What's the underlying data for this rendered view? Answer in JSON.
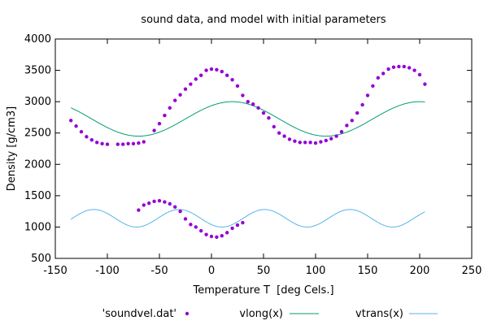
{
  "chart_data": {
    "type": "scatter",
    "title": "sound data, and model with initial parameters",
    "xlabel": "Temperature T  [deg Cels.]",
    "ylabel": "Density [g/cm3]",
    "xlim": [
      -150,
      250
    ],
    "ylim": [
      500,
      4000
    ],
    "x_ticks": [
      -150,
      -100,
      -50,
      0,
      50,
      100,
      150,
      200,
      250
    ],
    "y_ticks": [
      500,
      1000,
      1500,
      2000,
      2500,
      3000,
      3500,
      4000
    ],
    "grid": false,
    "legend_position": "bottom",
    "series": [
      {
        "name": "'soundvel.dat'",
        "kind": "points",
        "color": "#9400d3",
        "points": [
          [
            -135,
            2700
          ],
          [
            -130,
            2610
          ],
          [
            -125,
            2520
          ],
          [
            -120,
            2440
          ],
          [
            -115,
            2390
          ],
          [
            -110,
            2350
          ],
          [
            -105,
            2330
          ],
          [
            -100,
            2320
          ],
          [
            -90,
            2320
          ],
          [
            -85,
            2320
          ],
          [
            -80,
            2330
          ],
          [
            -75,
            2330
          ],
          [
            -70,
            2340
          ],
          [
            -65,
            2360
          ],
          [
            -55,
            2540
          ],
          [
            -50,
            2650
          ],
          [
            -45,
            2780
          ],
          [
            -40,
            2900
          ],
          [
            -35,
            3020
          ],
          [
            -30,
            3110
          ],
          [
            -25,
            3200
          ],
          [
            -20,
            3280
          ],
          [
            -15,
            3360
          ],
          [
            -10,
            3420
          ],
          [
            -5,
            3500
          ],
          [
            0,
            3520
          ],
          [
            5,
            3510
          ],
          [
            10,
            3480
          ],
          [
            15,
            3420
          ],
          [
            20,
            3350
          ],
          [
            25,
            3250
          ],
          [
            30,
            3100
          ],
          [
            35,
            3000
          ],
          [
            40,
            2960
          ],
          [
            45,
            2900
          ],
          [
            50,
            2820
          ],
          [
            55,
            2740
          ],
          [
            60,
            2600
          ],
          [
            65,
            2500
          ],
          [
            70,
            2450
          ],
          [
            75,
            2400
          ],
          [
            80,
            2370
          ],
          [
            85,
            2350
          ],
          [
            90,
            2350
          ],
          [
            95,
            2350
          ],
          [
            100,
            2340
          ],
          [
            105,
            2360
          ],
          [
            110,
            2380
          ],
          [
            115,
            2410
          ],
          [
            120,
            2450
          ],
          [
            125,
            2520
          ],
          [
            130,
            2620
          ],
          [
            135,
            2700
          ],
          [
            140,
            2820
          ],
          [
            145,
            2950
          ],
          [
            150,
            3100
          ],
          [
            155,
            3250
          ],
          [
            160,
            3380
          ],
          [
            165,
            3450
          ],
          [
            170,
            3520
          ],
          [
            175,
            3550
          ],
          [
            180,
            3560
          ],
          [
            185,
            3560
          ],
          [
            190,
            3540
          ],
          [
            195,
            3500
          ],
          [
            200,
            3430
          ],
          [
            205,
            3280
          ],
          [
            -70,
            1270
          ],
          [
            -65,
            1350
          ],
          [
            -60,
            1380
          ],
          [
            -55,
            1410
          ],
          [
            -50,
            1420
          ],
          [
            -45,
            1400
          ],
          [
            -40,
            1370
          ],
          [
            -35,
            1320
          ],
          [
            -30,
            1250
          ],
          [
            -25,
            1130
          ],
          [
            -20,
            1040
          ],
          [
            -15,
            1000
          ],
          [
            -10,
            940
          ],
          [
            -5,
            880
          ],
          [
            0,
            850
          ],
          [
            5,
            840
          ],
          [
            10,
            860
          ],
          [
            15,
            910
          ],
          [
            20,
            980
          ],
          [
            25,
            1030
          ],
          [
            30,
            1070
          ]
        ]
      },
      {
        "name": "vlong(x)",
        "kind": "line",
        "color": "#009e73",
        "function": {
          "a": 2725,
          "b": 275,
          "period": 180,
          "phase": 20,
          "x_from": -135,
          "x_to": 205
        }
      },
      {
        "name": "vtrans(x)",
        "kind": "line",
        "color": "#56b4e9",
        "function": {
          "a": 1140,
          "b": 140,
          "period": 82,
          "phase": -113,
          "x_from": -135,
          "x_to": 205
        }
      }
    ]
  }
}
